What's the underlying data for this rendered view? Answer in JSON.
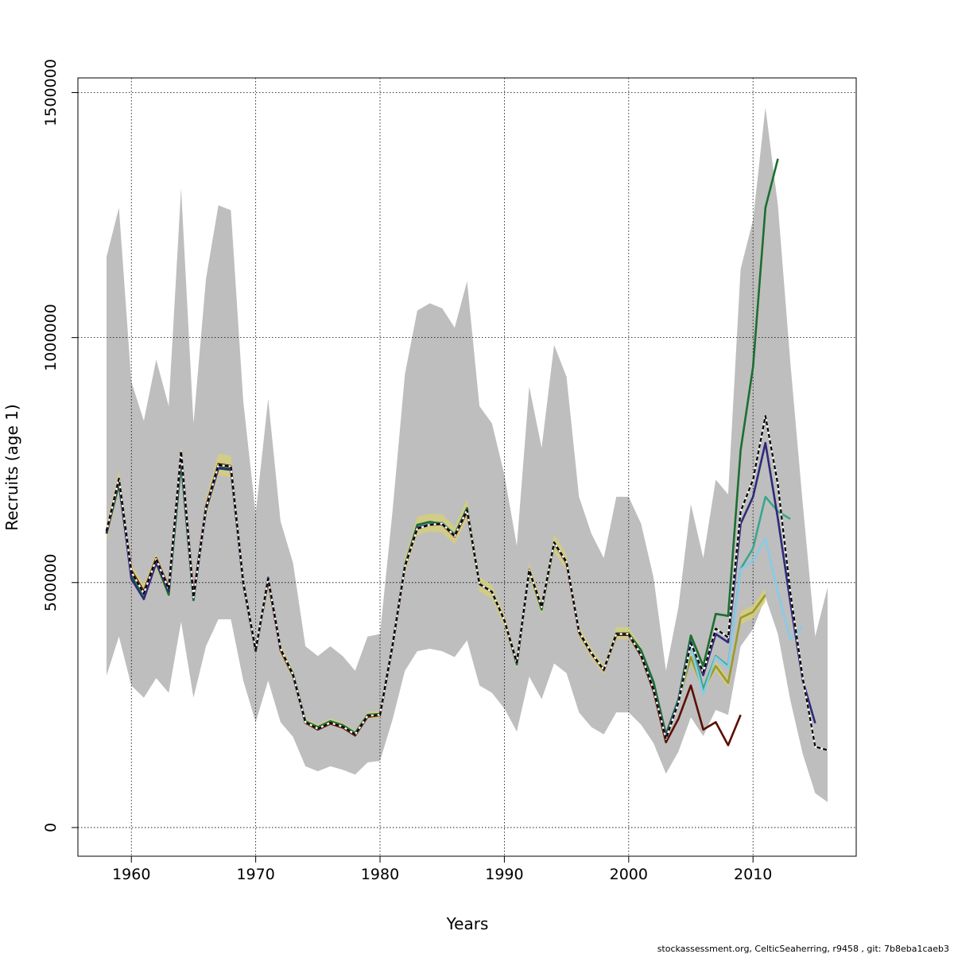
{
  "chart_data": {
    "type": "line",
    "xlabel": "Years",
    "ylabel": "Recruits (age 1)",
    "xlim": [
      1955.7,
      2018.3
    ],
    "ylim": [
      -58500,
      1530000
    ],
    "x_ticks": [
      1960,
      1970,
      1980,
      1990,
      2000,
      2010
    ],
    "x_tick_labels": [
      "1960",
      "1970",
      "1980",
      "1990",
      "2000",
      "2010"
    ],
    "y_ticks": [
      0,
      500000,
      1000000,
      1500000
    ],
    "y_tick_labels": [
      "0",
      "500000",
      "1000000",
      "1500000"
    ],
    "grid": true,
    "footer": "stockassessment.org, CelticSeaherring, r9458 , git: 7b8eba1caeb3",
    "colors": {
      "band": "#bebebe",
      "dashed": "#000000",
      "green": "#1b6e2f",
      "navy": "#2e2a7a",
      "teal": "#3aa68c",
      "skyblue": "#87cbe8",
      "olive": "#9c9a2a",
      "darkred": "#5c0d00"
    },
    "band": {
      "x": [
        1958,
        1959,
        1960,
        1961,
        1962,
        1963,
        1964,
        1965,
        1966,
        1967,
        1968,
        1969,
        1970,
        1971,
        1972,
        1973,
        1974,
        1975,
        1976,
        1977,
        1978,
        1979,
        1980,
        1981,
        1982,
        1983,
        1984,
        1985,
        1986,
        1987,
        1988,
        1989,
        1990,
        1991,
        1992,
        1993,
        1994,
        1995,
        1996,
        1997,
        1998,
        1999,
        2000,
        2001,
        2002,
        2003,
        2004,
        2005,
        2006,
        2007,
        2008,
        2009,
        2010,
        2011,
        2012,
        2013,
        2014,
        2015,
        2016
      ],
      "upper": [
        1165000,
        1265000,
        910000,
        830000,
        955000,
        860000,
        1305000,
        825000,
        1120000,
        1270000,
        1260000,
        870000,
        640000,
        875000,
        625000,
        540000,
        370000,
        350000,
        370000,
        350000,
        320000,
        390000,
        395000,
        645000,
        925000,
        1055000,
        1070000,
        1060000,
        1020000,
        1115000,
        860000,
        825000,
        720000,
        575000,
        900000,
        775000,
        985000,
        920000,
        675000,
        600000,
        550000,
        675000,
        675000,
        620000,
        510000,
        320000,
        450000,
        660000,
        550000,
        710000,
        680000,
        1140000,
        1240000,
        1470000,
        1270000,
        950000,
        660000,
        390000,
        490000
      ],
      "lower": [
        310000,
        390000,
        290000,
        265000,
        305000,
        275000,
        420000,
        265000,
        370000,
        425000,
        425000,
        300000,
        215000,
        300000,
        215000,
        185000,
        125000,
        115000,
        125000,
        118000,
        108000,
        133000,
        136000,
        220000,
        320000,
        360000,
        365000,
        360000,
        348000,
        382000,
        290000,
        275000,
        243000,
        196000,
        308000,
        262000,
        335000,
        315000,
        235000,
        205000,
        190000,
        235000,
        235000,
        210000,
        172000,
        110000,
        155000,
        225000,
        187000,
        240000,
        230000,
        370000,
        405000,
        470000,
        395000,
        260000,
        150000,
        70000,
        52000
      ]
    },
    "series": [
      {
        "key": "base",
        "color": "#000000",
        "dashed": true,
        "x": [
          1958,
          1959,
          1960,
          1961,
          1962,
          1963,
          1964,
          1965,
          1966,
          1967,
          1968,
          1969,
          1970,
          1971,
          1972,
          1973,
          1974,
          1975,
          1976,
          1977,
          1978,
          1979,
          1980,
          1981,
          1982,
          1983,
          1984,
          1985,
          1986,
          1987,
          1988,
          1989,
          1990,
          1991,
          1992,
          1993,
          1994,
          1995,
          1996,
          1997,
          1998,
          1999,
          2000,
          2001,
          2002,
          2003,
          2004,
          2005,
          2006,
          2007,
          2008,
          2009,
          2010,
          2011,
          2012,
          2013,
          2014,
          2015,
          2016
        ],
        "y": [
          605000,
          712000,
          522000,
          478000,
          548000,
          487000,
          768000,
          470000,
          652000,
          740000,
          737000,
          500000,
          363000,
          508000,
          365000,
          312000,
          215000,
          202000,
          214000,
          206000,
          190000,
          228000,
          230000,
          372000,
          533000,
          610000,
          618000,
          620000,
          595000,
          648000,
          497000,
          481000,
          423000,
          337000,
          525000,
          450000,
          582000,
          542000,
          400000,
          356000,
          322000,
          395000,
          395000,
          352000,
          282000,
          181000,
          255000,
          376000,
          317000,
          406000,
          388000,
          645000,
          710000,
          840000,
          700000,
          480000,
          305000,
          165000,
          158000
        ]
      },
      {
        "key": "retro-1",
        "color": "#2e2a7a",
        "dashed": false,
        "x": [
          1958,
          1959,
          1960,
          1961,
          1962,
          1963,
          1964,
          1965,
          1966,
          1967,
          1968,
          1969,
          1970,
          1971,
          1972,
          1973,
          1974,
          1975,
          1976,
          1977,
          1978,
          1979,
          1980,
          1981,
          1982,
          1983,
          1984,
          1985,
          1986,
          1987,
          1988,
          1989,
          1990,
          1991,
          1992,
          1993,
          1994,
          1995,
          1996,
          1997,
          1998,
          1999,
          2000,
          2001,
          2002,
          2003,
          2004,
          2005,
          2006,
          2007,
          2008,
          2009,
          2010,
          2011,
          2012,
          2013,
          2014,
          2015
        ],
        "y": [
          600000,
          708000,
          508000,
          466000,
          540000,
          482000,
          760000,
          468000,
          648000,
          733000,
          730000,
          498000,
          360000,
          510000,
          365000,
          311000,
          214000,
          201000,
          213000,
          205000,
          189000,
          227000,
          230000,
          372000,
          533000,
          612000,
          619000,
          620000,
          595000,
          648000,
          497000,
          481000,
          423000,
          337000,
          525000,
          450000,
          582000,
          542000,
          400000,
          356000,
          322000,
          395000,
          394000,
          352000,
          283000,
          184000,
          258000,
          379000,
          311000,
          395000,
          378000,
          620000,
          675000,
          785000,
          630000,
          460000,
          300000,
          213000
        ]
      },
      {
        "key": "retro-2",
        "color": "#87cbe8",
        "dashed": false,
        "x": [
          1958,
          1959,
          1960,
          1961,
          1962,
          1963,
          1964,
          1965,
          1966,
          1967,
          1968,
          1969,
          1970,
          1971,
          1972,
          1973,
          1974,
          1975,
          1976,
          1977,
          1978,
          1979,
          1980,
          1981,
          1982,
          1983,
          1984,
          1985,
          1986,
          1987,
          1988,
          1989,
          1990,
          1991,
          1992,
          1993,
          1994,
          1995,
          1996,
          1997,
          1998,
          1999,
          2000,
          2001,
          2002,
          2003,
          2004,
          2005,
          2006,
          2007,
          2008,
          2009,
          2010,
          2011,
          2012,
          2013,
          2014
        ],
        "y": [
          603000,
          708000,
          518000,
          474000,
          546000,
          485000,
          766000,
          468000,
          650000,
          738000,
          735000,
          499000,
          362000,
          506000,
          364000,
          312000,
          215000,
          202000,
          214000,
          206000,
          190000,
          228000,
          230000,
          372000,
          534000,
          612000,
          620000,
          621000,
          596000,
          649000,
          497000,
          481000,
          423000,
          337000,
          525000,
          448000,
          582000,
          542000,
          400000,
          356000,
          322000,
          396000,
          396000,
          353000,
          285000,
          186000,
          254000,
          368000,
          272000,
          348000,
          326000,
          527000,
          545000,
          590000,
          480000,
          385000,
          410000
        ]
      },
      {
        "key": "retro-3",
        "color": "#3aa68c",
        "dashed": false,
        "x": [
          1958,
          1959,
          1960,
          1961,
          1962,
          1963,
          1964,
          1965,
          1966,
          1967,
          1968,
          1969,
          1970,
          1971,
          1972,
          1973,
          1974,
          1975,
          1976,
          1977,
          1978,
          1979,
          1980,
          1981,
          1982,
          1983,
          1984,
          1985,
          1986,
          1987,
          1988,
          1989,
          1990,
          1991,
          1992,
          1993,
          1994,
          1995,
          1996,
          1997,
          1998,
          1999,
          2000,
          2001,
          2002,
          2003,
          2004,
          2005,
          2006,
          2007,
          2008,
          2009,
          2010,
          2011,
          2012,
          2013
        ],
        "y": [
          602000,
          707000,
          515000,
          472000,
          545000,
          480000,
          764000,
          466000,
          649000,
          737000,
          734000,
          499000,
          361000,
          507000,
          364000,
          312000,
          215000,
          202000,
          214000,
          206000,
          190000,
          228000,
          230000,
          372000,
          534000,
          615000,
          621000,
          622000,
          597000,
          650000,
          497000,
          481000,
          423000,
          337000,
          525000,
          447000,
          582000,
          542000,
          400000,
          356000,
          322000,
          396000,
          396000,
          356000,
          287000,
          187000,
          256000,
          384000,
          283000,
          350000,
          330000,
          528000,
          570000,
          675000,
          645000,
          630000
        ]
      },
      {
        "key": "retro-4",
        "color": "#1b6e2f",
        "dashed": false,
        "x": [
          1958,
          1959,
          1960,
          1961,
          1962,
          1963,
          1964,
          1965,
          1966,
          1967,
          1968,
          1969,
          1970,
          1971,
          1972,
          1973,
          1974,
          1975,
          1976,
          1977,
          1978,
          1979,
          1980,
          1981,
          1982,
          1983,
          1984,
          1985,
          1986,
          1987,
          1988,
          1989,
          1990,
          1991,
          1992,
          1993,
          1994,
          1995,
          1996,
          1997,
          1998,
          1999,
          2000,
          2001,
          2002,
          2003,
          2004,
          2005,
          2006,
          2007,
          2008,
          2009,
          2010,
          2011,
          2012
        ],
        "y": [
          600000,
          700000,
          515000,
          475000,
          540000,
          475000,
          745000,
          464000,
          655000,
          737000,
          733000,
          497000,
          361000,
          505000,
          364000,
          314000,
          217000,
          205000,
          217000,
          209000,
          193000,
          230000,
          232000,
          373000,
          535000,
          618000,
          624000,
          620000,
          598000,
          652000,
          497000,
          481000,
          423000,
          333000,
          525000,
          445000,
          580000,
          542000,
          400000,
          356000,
          322000,
          396000,
          396000,
          362000,
          297000,
          190000,
          262000,
          392000,
          330000,
          436000,
          432000,
          770000,
          940000,
          1265000,
          1365000
        ]
      },
      {
        "key": "retro-5",
        "color": "#9c9a2a",
        "fill": "#d6cf78",
        "dashed": false,
        "x": [
          1958,
          1959,
          1960,
          1961,
          1962,
          1963,
          1964,
          1965,
          1966,
          1967,
          1968,
          1969,
          1970,
          1971,
          1972,
          1973,
          1974,
          1975,
          1976,
          1977,
          1978,
          1979,
          1980,
          1981,
          1982,
          1983,
          1984,
          1985,
          1986,
          1987,
          1988,
          1989,
          1990,
          1991,
          1992,
          1993,
          1994,
          1995,
          1996,
          1997,
          1998,
          1999,
          2000,
          2001,
          2002,
          2003,
          2004,
          2005,
          2006,
          2007,
          2008,
          2009,
          2010,
          2011
        ],
        "y": [
          603000,
          708000,
          520000,
          482000,
          544000,
          483000,
          762000,
          470000,
          652000,
          741000,
          737000,
          499000,
          363000,
          504000,
          364000,
          312000,
          216000,
          204000,
          216000,
          208000,
          192000,
          229000,
          231000,
          372000,
          535000,
          616000,
          622000,
          621000,
          596000,
          650000,
          497000,
          481000,
          423000,
          335000,
          525000,
          448000,
          581000,
          542000,
          400000,
          356000,
          322000,
          397000,
          397000,
          358000,
          294000,
          190000,
          258000,
          348000,
          280000,
          330000,
          295000,
          428000,
          440000,
          475000
        ]
      },
      {
        "key": "retro-6",
        "color": "#5c0d00",
        "dashed": false,
        "x": [
          1958,
          1959,
          1960,
          1961,
          1962,
          1963,
          1964,
          1965,
          1966,
          1967,
          1968,
          1969,
          1970,
          1971,
          1972,
          1973,
          1974,
          1975,
          1976,
          1977,
          1978,
          1979,
          1980,
          1981,
          1982,
          1983,
          1984,
          1985,
          1986,
          1987,
          1988,
          1989,
          1990,
          1991,
          1992,
          1993,
          1994,
          1995,
          1996,
          1997,
          1998,
          1999,
          2000,
          2001,
          2002,
          2003,
          2004,
          2005,
          2006,
          2007,
          2008,
          2009
        ],
        "y": [
          606000,
          712000,
          525000,
          482000,
          550000,
          490000,
          768000,
          475000,
          655000,
          742000,
          738000,
          502000,
          362000,
          505000,
          362000,
          310000,
          214000,
          200000,
          212000,
          204000,
          188000,
          226000,
          229000,
          370000,
          532000,
          610000,
          618000,
          619000,
          594000,
          645000,
          497000,
          481000,
          423000,
          337000,
          526000,
          450000,
          582000,
          540000,
          398000,
          355000,
          321000,
          393000,
          393000,
          350000,
          278000,
          174000,
          222000,
          290000,
          200000,
          215000,
          168000,
          230000
        ]
      }
    ]
  }
}
